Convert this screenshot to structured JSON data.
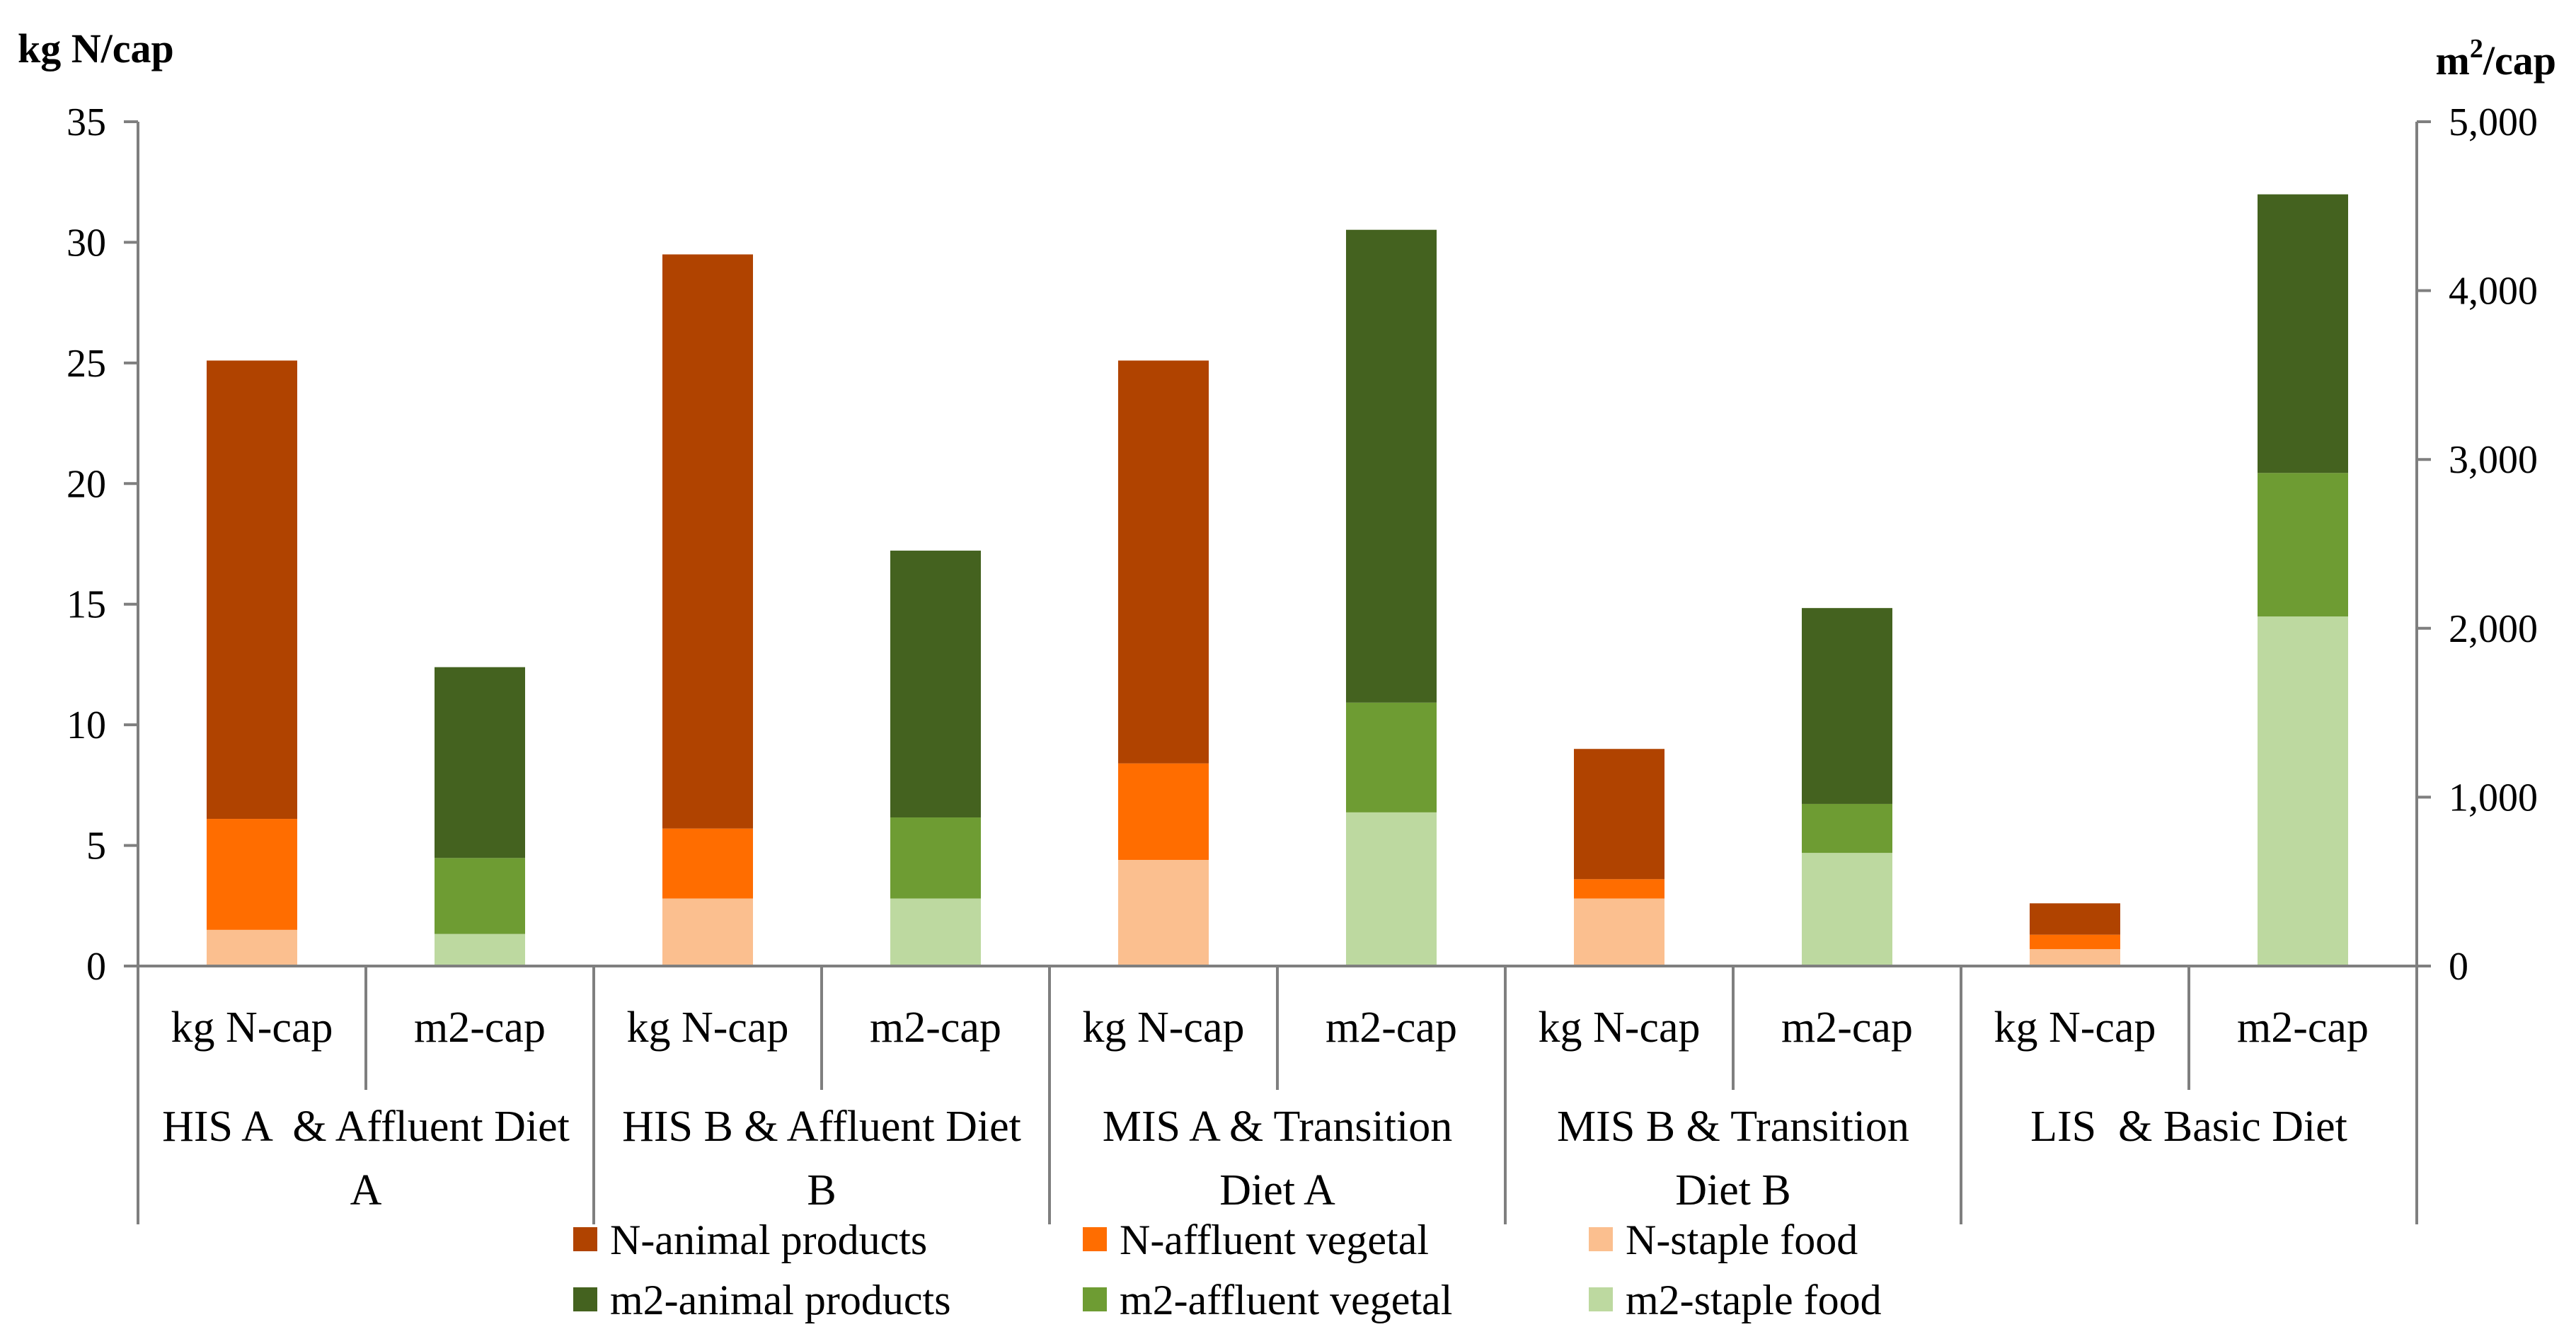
{
  "chart_data": {
    "type": "bar",
    "stacked": true,
    "left_axis_title": "kg N/cap",
    "right_axis_title": "m",
    "right_axis_title_sup": "2",
    "right_axis_title_suffix": "/cap",
    "left_ylim": [
      0,
      35
    ],
    "left_ticks": [
      "0",
      "5",
      "10",
      "15",
      "20",
      "25",
      "30",
      "35"
    ],
    "right_ylim": [
      0,
      5000
    ],
    "right_ticks": [
      "0",
      "1,000",
      "2,000",
      "3,000",
      "4,000",
      "5,000"
    ],
    "groups": [
      {
        "lines": [
          "HIS A  & Affluent Diet",
          "A"
        ]
      },
      {
        "lines": [
          "HIS B & Affluent Diet",
          "B"
        ]
      },
      {
        "lines": [
          "MIS A & Transition",
          "Diet A"
        ]
      },
      {
        "lines": [
          "MIS B & Transition",
          "Diet B"
        ]
      },
      {
        "lines": [
          "LIS  & Basic Diet"
        ]
      }
    ],
    "sub_categories": [
      "kg N-cap",
      "m2-cap"
    ],
    "n_series": [
      {
        "name": "N-staple food",
        "color": "#fbbf8f",
        "values": [
          1.5,
          2.8,
          4.4,
          2.8,
          0.7
        ]
      },
      {
        "name": "N-affluent vegetal",
        "color": "#ff6d00",
        "values": [
          4.6,
          2.9,
          4.0,
          0.8,
          0.6
        ]
      },
      {
        "name": "N-animal products",
        "color": "#b04300",
        "values": [
          19.0,
          23.8,
          16.7,
          5.4,
          1.3
        ]
      }
    ],
    "m2_series": [
      {
        "name": "m2-staple food",
        "color": "#bdd9a0",
        "values": [
          190,
          400,
          910,
          670,
          2070
        ]
      },
      {
        "name": "m2-affluent vegetal",
        "color": "#6e9c33",
        "values": [
          450,
          480,
          650,
          290,
          850
        ]
      },
      {
        "name": "m2-animal products",
        "color": "#44621f",
        "values": [
          1130,
          1580,
          2800,
          1160,
          1650
        ]
      }
    ],
    "legend": [
      {
        "name": "N-animal products",
        "color": "#b04300"
      },
      {
        "name": "N-affluent vegetal",
        "color": "#ff6d00"
      },
      {
        "name": "N-staple food",
        "color": "#fbbf8f"
      },
      {
        "name": "m2-animal products",
        "color": "#44621f"
      },
      {
        "name": "m2-affluent vegetal",
        "color": "#6e9c33"
      },
      {
        "name": "m2-staple food",
        "color": "#bdd9a0"
      }
    ],
    "legend_position": "bottom",
    "axis_color": "#7f7f7f"
  }
}
